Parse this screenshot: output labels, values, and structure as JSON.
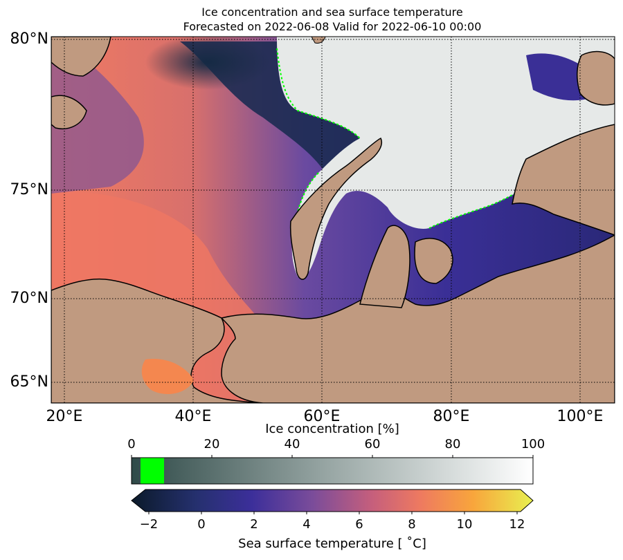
{
  "title": {
    "line1": "Ice concentration and sea surface temperature",
    "line2": "Forecasted on 2022-06-08   Valid for 2022-06-10 00:00"
  },
  "map": {
    "lat_labels": [
      "80°N",
      "75°N",
      "70°N",
      "65°N"
    ],
    "lon_labels": [
      "20°E",
      "40°E",
      "60°E",
      "80°E",
      "100°E"
    ],
    "colors": {
      "land": "#c09a80",
      "coast": "#000000",
      "ice_edge": "#00ff00",
      "warm_water": "#f07a62",
      "cold_water": "#3a2f96",
      "ice": "#e8eaea"
    }
  },
  "ice_colorbar": {
    "label": "Ice concentration [%]",
    "ticks": [
      "0",
      "20",
      "40",
      "60",
      "80",
      "100"
    ],
    "range": [
      0,
      100
    ],
    "colors": [
      "#2f4a48",
      "#ffffff"
    ],
    "highlight_color": "#00ff00",
    "highlight_range": [
      2,
      8
    ]
  },
  "sst_colorbar": {
    "label": "Sea surface temperature [$^\\circ$C]",
    "label_display": "Sea surface temperature [ ˚C]",
    "ticks": [
      "−2",
      "0",
      "2",
      "4",
      "6",
      "8",
      "10",
      "12"
    ],
    "range": [
      -2,
      12
    ]
  }
}
